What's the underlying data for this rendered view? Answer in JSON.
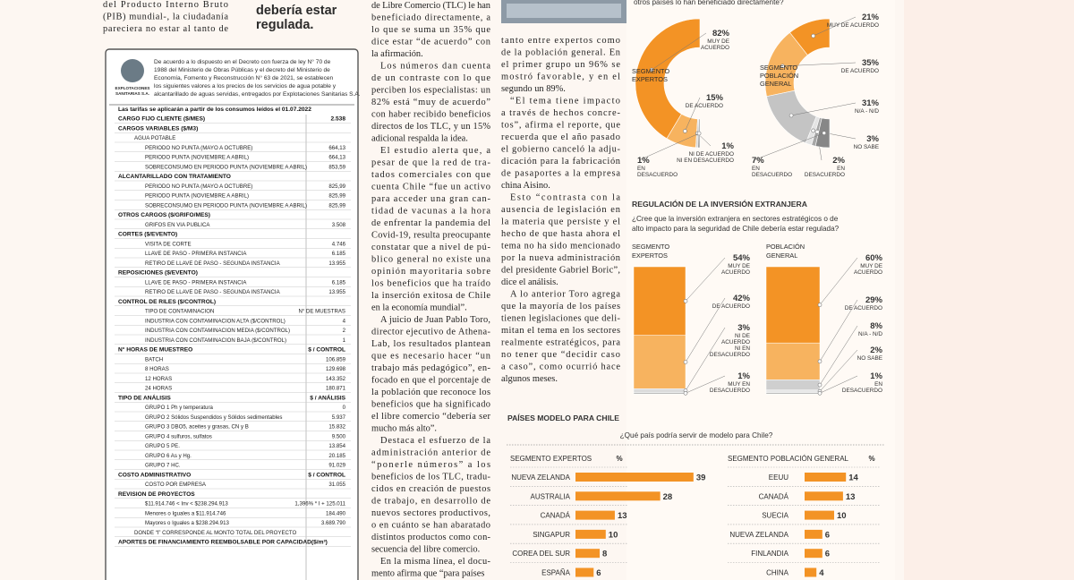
{
  "left_column": {
    "lines": [
      "del Producto Interno Bruto",
      "(PIB) mundial-, la ciudadanía",
      "pareciera no estar al tanto de"
    ]
  },
  "pull_quote": {
    "lines": [
      "debería estar",
      "regulada."
    ]
  },
  "notice": {
    "intro_lines": [
      "De acuerdo a lo dispuesto en el Decreto con fuerza de ley N° 70 de",
      "1988 del Ministerio de Obras Públicas y el decreto del Ministerio de",
      "Economía, Fomento y Reconstrucción N° 63 de 2021, se establecen",
      "los siguientes valores a los precios de los servicios de agua potable y",
      "alcantarillado de aguas servidas, entregados por Explotaciones Sanitarias S.A."
    ],
    "logo_lines": [
      "EXPLOTACIONES",
      "SANITARIAS S.A."
    ],
    "table_title": "Las tarifas se aplicarán a partir de los consumos leídos el 01.07.2022",
    "sections": [
      {
        "title": "CARGO FIJO CLIENTE ($/MES)",
        "value": "2.538",
        "rows": []
      },
      {
        "title": "CARGOS VARIABLES ($/M3)",
        "rows": [
          [
            "AGUA POTABLE"
          ],
          [
            "PERIODO NO PUNTA (MAYO A OCTUBRE)",
            "664,13"
          ],
          [
            "PERIODO PUNTA (NOVIEMBRE A ABRIL)",
            "664,13"
          ],
          [
            "SOBRECONSUMO EN PERIODO PUNTA (NOVIEMBRE A ABRIL)",
            "853,59"
          ]
        ]
      },
      {
        "title": "ALCANTARILLADO CON TRATAMIENTO",
        "rows": [
          [
            "PERIODO NO PUNTA (MAYO A OCTUBRE)",
            "825,99"
          ],
          [
            "PERIODO PUNTA (NOVIEMBRE A ABRIL)",
            "825,99"
          ],
          [
            "SOBRECONSUMO EN PERIODO PUNTA (NOVIEMBRE A ABRIL)",
            "825,99"
          ]
        ]
      },
      {
        "title": "OTROS CARGOS ($/GRIFO/MES)",
        "rows": [
          [
            "GRIFOS EN VIA PUBLICA",
            "3.508"
          ]
        ]
      },
      {
        "title": "CORTES ($/EVENTO)",
        "rows": [
          [
            "VISITA DE CORTE",
            "4.746"
          ],
          [
            "LLAVE DE PASO - PRIMERA INSTANCIA",
            "6.185"
          ],
          [
            "RETIRO DE LLAVE DE PASO - SEGUNDA INSTANCIA",
            "13.955"
          ]
        ]
      },
      {
        "title": "REPOSICIONES ($/EVENTO)",
        "rows": [
          [
            "LLAVE DE PASO - PRIMERA INSTANCIA",
            "6.185"
          ],
          [
            "RETIRO DE LLAVE DE PASO - SEGUNDA INSTANCIA",
            "13.955"
          ]
        ]
      },
      {
        "title": "CONTROL DE RILES ($/CONTROL)",
        "rows": [
          [
            "TIPO DE CONTAMINACION",
            "N° DE MUESTRAS"
          ],
          [
            "INDUSTRIA CON CONTAMINACION ALTA ($/CONTROL)",
            "4"
          ],
          [
            "INDUSTRIA CON CONTAMINACION MEDIA ($/CONTROL)",
            "2"
          ],
          [
            "INDUSTRIA CON CONTAMINACION BAJA ($/CONTROL)",
            "1"
          ]
        ]
      },
      {
        "title": "N° HORAS DE MUESTREO",
        "value": "$ / CONTROL",
        "rows": [
          [
            "BATCH",
            "106.859"
          ],
          [
            "8 HORAS",
            "129.698"
          ],
          [
            "12 HORAS",
            "143.352"
          ],
          [
            "24 HORAS",
            "180.871"
          ]
        ]
      },
      {
        "title": "TIPO DE ANÁLISIS",
        "value": "$ / ANÁLISIS",
        "rows": [
          [
            "GRUPO 1 Ph y temperatura",
            "0"
          ],
          [
            "GRUPO 2 Sólidos Suspendidos y Sólidos sedimentables",
            "5.937"
          ],
          [
            "GRUPO 3 DBO5, aceites y grasas, CN y B",
            "15.832"
          ],
          [
            "GRUPO 4 sulfuros, sulfatos",
            "9.500"
          ],
          [
            "GRUPO 5 PE.",
            "13.854"
          ],
          [
            "GRUPO 6 As y Hg.",
            "20.185"
          ],
          [
            "GRUPO 7 HC.",
            "91.029"
          ]
        ]
      },
      {
        "title": "COSTO ADMINISTRATIVO",
        "value": "$ / CONTROL",
        "rows": [
          [
            "COSTO POR EMPRESA",
            "31.055"
          ]
        ]
      },
      {
        "title": "REVISION DE PROYECTOS",
        "rows": [
          [
            "$11.914.746 < Inv < $238.294.913",
            "1,396% * I + 125.011"
          ],
          [
            "Menores o Iguales a $11.914.746",
            "184.490"
          ],
          [
            "Mayores o Iguales a $238.294.913",
            "3.689.790"
          ],
          [
            "DONDE “I” CORRESPONDE AL MONTO TOTAL DEL PROYECTO"
          ]
        ]
      },
      {
        "title": "APORTES DE FINANCIAMIENTO REEMBOLSABLE POR CAPACIDAD($/m³)",
        "rows": []
      }
    ]
  },
  "article": {
    "columns": [
      {
        "paragraphs": [
          [
            "de Libre Comercio (TLC) le han",
            "beneficiado directamente, a",
            "lo que se suma un 35% que",
            "dice estar “de acuerdo” con",
            "la afirmación."
          ],
          [
            "Los números dan cuenta",
            "de un contraste con lo que",
            "perciben los especialistas: un",
            "82% está “muy de acuerdo”",
            "con haber recibido beneficios",
            "directos de los TLC, y un 15%",
            "adicional respalda la idea."
          ],
          [
            "El estudio alerta que, a",
            "pesar de que la red de tra-",
            "tados comerciales con que",
            "cuenta Chile “fue un activo",
            "para acceder una gran can-",
            "tidad de vacunas a la hora",
            "de enfrentar la pandemia del",
            "Covid-19, resulta preocupante",
            "constatar que a nivel de pú-",
            "blico general no existe una",
            "opinión mayoritaria sobre",
            "los beneficios que ha traído",
            "la inserción exitosa de Chile",
            "en la economía mundial”."
          ],
          [
            "A juicio de Juan Pablo Toro,",
            "director ejecutivo de Athena-",
            "Lab, los resultados plantean",
            "que es necesario hacer “un",
            "trabajo más pedagógico”, en-",
            "focado en que el porcentaje de",
            "la población que reconoce los",
            "beneficios que ha significado",
            "el libre comercio “debería ser",
            "mucho más alto”."
          ],
          [
            "Destaca el esfuerzo de la",
            "administración anterior de",
            "“ponerle números” a los",
            "beneficios de los TLC, tradu-",
            "cidos en creación de puestos",
            "de trabajo, en desarrollo de",
            "nuevos sectores productivos,",
            "o en cuánto se han abaratado",
            "distintos productos como con-",
            "secuencia del libre comercio."
          ],
          [
            "En la misma línea, el docu-",
            "mento afirma que “para países"
          ]
        ]
      },
      {
        "paragraphs": [
          [
            "tanto entre expertos como",
            "de la población general. En",
            "el primer grupo un 96% se",
            "mostró favorable, y en el",
            "segundo un 89%."
          ],
          [
            "“El tema tiene impacto",
            "a través de hechos concre-",
            "tos”, afirma el reporte, que",
            "recuerda que el año pasado",
            "el gobierno canceló la adju-",
            "dicación para la fabricación",
            "de pasaportes a la empresa",
            "china Aisino."
          ],
          [
            "Esto “contrasta con la",
            "ausencia de legislación en",
            "la materia que persiste y el",
            "hecho de que hasta ahora el",
            "tema no ha sido mencionado",
            "por la nueva administración",
            "del presidente Gabriel Boric”,",
            "dice el análisis."
          ],
          [
            "A lo anterior Toro agrega",
            "que la mayoría de los países",
            "tienen legislaciones que deli-",
            "mitan el tema en los sectores",
            "realmente estratégicos, para",
            "no tener que “decidir caso",
            "a caso”, como ocurrió hace",
            "algunos meses."
          ]
        ]
      }
    ]
  },
  "benefit": {
    "question": "otros países lo han beneficiado directamente?",
    "groups": [
      {
        "name_lines": [
          "SEGMENTO",
          "EXPERTOS"
        ],
        "values": [
          82,
          15,
          1,
          1
        ],
        "value_labels": [
          "82%",
          "15%",
          "1%",
          "1%"
        ],
        "colors": [
          "#f39325",
          "#f7b35f",
          "#d6d6d6",
          "#9e9e9e"
        ],
        "categories": [
          [
            "MUY DE",
            "ACUERDO"
          ],
          [
            "DE ACUERDO"
          ],
          [
            "NI DE ACUERDO",
            "NI EN DESACUERDO"
          ],
          [
            "EN",
            "DESACUERDO"
          ]
        ]
      },
      {
        "name_lines": [
          "SEGMENTO",
          "POBLACIÓN",
          "GENERAL"
        ],
        "values": [
          21,
          35,
          31,
          3,
          2,
          7
        ],
        "value_labels": [
          "21%",
          "35%",
          "31%",
          "3%",
          "2%",
          "7%"
        ],
        "colors": [
          "#f39325",
          "#f7b35f",
          "#c4c4c4",
          "#e4e4e4",
          "#a6a6a6",
          "#878787"
        ],
        "categories": [
          [
            "MUY DE ACUERDO"
          ],
          [
            "DE ACUERDO"
          ],
          [
            "N/A - N/D"
          ],
          [
            "NO SABE"
          ],
          [
            "EN",
            "DESACUERDO"
          ],
          [
            "EN",
            "DESACUERDO"
          ]
        ]
      }
    ]
  },
  "regulation": {
    "title": "REGULACIÓN DE LA INVERSIÓN EXTRANJERA",
    "question_lines": [
      "¿Cree que la inversión extranjera en sectores estratégicos o de",
      "alto impacto para la seguridad de Chile debería estar regulada?"
    ],
    "groups": [
      {
        "name_lines": [
          "SEGMENTO",
          "EXPERTOS"
        ],
        "values": [
          54,
          42,
          3,
          1
        ],
        "value_labels": [
          "54%",
          "42%",
          "3%",
          "1%"
        ],
        "colors": [
          "#f39325",
          "#f7b35f",
          "#dcdcdc",
          "#a6a6a6"
        ],
        "categories": [
          [
            "MUY DE",
            "ACUERDO"
          ],
          [
            "DE ACUERDO"
          ],
          [
            "NI DE",
            "ACUERDO",
            "NI EN",
            "DESACUERDO"
          ],
          [
            "MUY EN",
            "DESACUERDO"
          ]
        ]
      },
      {
        "name_lines": [
          "POBLACIÓN",
          "GENERAL"
        ],
        "values": [
          60,
          29,
          8,
          2,
          1
        ],
        "value_labels": [
          "60%",
          "29%",
          "8%",
          "2%",
          "1%"
        ],
        "colors": [
          "#f39325",
          "#f7b35f",
          "#cfcfcf",
          "#e8e8e8",
          "#a6a6a6"
        ],
        "categories": [
          [
            "MUY DE",
            "ACUERDO"
          ],
          [
            "DE ACUERDO"
          ],
          [
            "N/A - N/D"
          ],
          [
            "NO SABE"
          ],
          [
            "EN",
            "DESACUERDO"
          ]
        ]
      }
    ]
  },
  "models": {
    "title": "PAÍSES MODELO PARA CHILE",
    "question": "¿Qué país podría servir de modelo para Chile?",
    "color": "#f39325",
    "groups": [
      {
        "name": "SEGMENTO EXPERTOS",
        "unit": "%",
        "categories": [
          "NUEVA ZELANDA",
          "AUSTRALIA",
          "CANADÁ",
          "SINGAPUR",
          "COREA DEL SUR",
          "ESPAÑA"
        ],
        "values": [
          39,
          28,
          13,
          10,
          8,
          6
        ]
      },
      {
        "name": "SEGMENTO POBLACIÓN GENERAL",
        "unit": "%",
        "categories": [
          "EEUU",
          "CANADÁ",
          "SUECIA",
          "NUEVA ZELANDA",
          "FINLANDIA",
          "CHINA"
        ],
        "values": [
          14,
          13,
          10,
          6,
          6,
          4
        ]
      }
    ]
  }
}
